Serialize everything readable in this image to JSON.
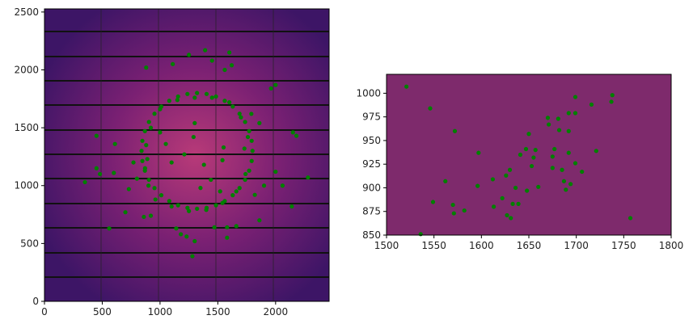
{
  "chart_data": [
    {
      "type": "scatter",
      "color": "#008000",
      "xlim": [
        0,
        2463
      ],
      "ylim": [
        0,
        2527
      ],
      "xticks": [
        0,
        500,
        1000,
        1500,
        2000
      ],
      "yticks": [
        0,
        500,
        1000,
        1500,
        2000,
        2500
      ],
      "x": [
        1800,
        1771,
        1688,
        1560,
        1403,
        1237,
        1080,
        952,
        869,
        840,
        869,
        952,
        1080,
        1237,
        1403,
        1560,
        1688,
        1771,
        1793,
        1736,
        1629,
        1484,
        1320,
        1156,
        1011,
        904,
        847,
        847,
        904,
        1011,
        1156,
        1320,
        1484,
        1629,
        1736,
        1793,
        1760,
        1700,
        1600,
        1450,
        1300,
        1150,
        1000,
        920,
        880,
        870,
        900,
        960,
        1100,
        1250,
        1400,
        1540,
        1660,
        1740,
        1250,
        1390,
        1600,
        1620,
        1560,
        880,
        1110,
        1450,
        1960,
        2000,
        2150,
        2180,
        1860,
        1790,
        450,
        610,
        1000,
        1300,
        1290,
        1550,
        1380,
        1540,
        1730,
        2000,
        2280,
        2060,
        2140,
        1900,
        1820,
        1860,
        1660,
        1580,
        1580,
        1470,
        1300,
        1280,
        1230,
        1180,
        1140,
        920,
        860,
        700,
        560,
        730,
        800,
        600,
        450,
        480,
        350,
        770,
        890,
        1050,
        1100,
        1210,
        1520,
        1350,
        1440
      ],
      "y": [
        1300,
        1471,
        1621,
        1733,
        1792,
        1792,
        1733,
        1621,
        1471,
        1300,
        1129,
        979,
        867,
        808,
        808,
        867,
        979,
        1129,
        1387,
        1550,
        1683,
        1770,
        1800,
        1770,
        1683,
        1550,
        1387,
        1213,
        1050,
        917,
        830,
        800,
        830,
        917,
        1050,
        1213,
        1420,
        1590,
        1720,
        1760,
        1760,
        1740,
        1660,
        1500,
        1350,
        1150,
        1000,
        880,
        820,
        780,
        790,
        850,
        950,
        1100,
        2130,
        2170,
        2150,
        2040,
        2000,
        2020,
        2050,
        2080,
        1840,
        1870,
        1460,
        1430,
        1540,
        1620,
        1430,
        1360,
        1460,
        1540,
        1420,
        1330,
        1180,
        1220,
        1320,
        1120,
        1070,
        1000,
        820,
        1000,
        920,
        700,
        650,
        640,
        550,
        640,
        520,
        390,
        560,
        580,
        630,
        740,
        730,
        770,
        630,
        970,
        1060,
        1110,
        1150,
        1100,
        1030,
        1200,
        1230,
        1360,
        1200,
        1270,
        950,
        980,
        1050
      ]
    },
    {
      "type": "scatter",
      "color": "#008000",
      "xlim": [
        1500,
        1800
      ],
      "ylim": [
        850,
        1020
      ],
      "xticks": [
        1500,
        1550,
        1600,
        1650,
        1700,
        1750,
        1800
      ],
      "yticks": [
        850,
        875,
        900,
        925,
        950,
        975,
        1000
      ],
      "x": [
        1521,
        1546,
        1572,
        1549,
        1562,
        1570,
        1571,
        1582,
        1536,
        1597,
        1596,
        1612,
        1613,
        1622,
        1626,
        1630,
        1627,
        1631,
        1633,
        1636,
        1639,
        1641,
        1647,
        1650,
        1648,
        1653,
        1657,
        1655,
        1660,
        1670,
        1671,
        1675,
        1675,
        1677,
        1681,
        1682,
        1685,
        1687,
        1689,
        1692,
        1692,
        1692,
        1694,
        1699,
        1699,
        1699,
        1706,
        1716,
        1721,
        1738,
        1737,
        1757
      ],
      "y": [
        1007,
        984,
        960,
        885,
        907,
        882,
        873,
        876,
        851,
        937,
        902,
        909,
        880,
        889,
        913,
        919,
        871,
        868,
        883,
        900,
        883,
        935,
        941,
        957,
        897,
        923,
        940,
        932,
        901,
        974,
        967,
        933,
        921,
        941,
        973,
        961,
        919,
        907,
        898,
        979,
        960,
        937,
        904,
        979,
        996,
        926,
        917,
        988,
        939,
        998,
        991,
        868
      ]
    }
  ]
}
